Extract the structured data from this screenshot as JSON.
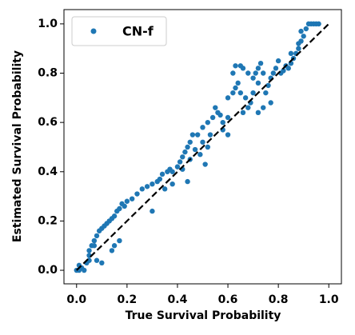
{
  "chart_data": {
    "type": "scatter",
    "xlabel": "True Survival Probability",
    "ylabel": "Estimated Survival Probability",
    "xlim": [
      -0.05,
      1.05
    ],
    "ylim": [
      -0.055,
      1.058
    ],
    "xticks": [
      {
        "value": 0,
        "label": "0.0"
      },
      0.2,
      0.4,
      0.6,
      0.8,
      {
        "value": 1,
        "label": "1.0"
      }
    ],
    "yticks": [
      {
        "value": 0,
        "label": "0.0"
      },
      0.2,
      0.4,
      0.6,
      0.8,
      {
        "value": 1,
        "label": "1.0"
      }
    ],
    "legend": "upper left",
    "reference_line": {
      "x": [
        0,
        1
      ],
      "y": [
        0,
        1
      ],
      "color": "#000000",
      "dashed": true
    },
    "series": [
      {
        "name": "CN-f",
        "color": "#1f77b4",
        "x": [
          0,
          0.01,
          0.02,
          0.03,
          0.01,
          0.04,
          0.05,
          0.06,
          0.05,
          0.07,
          0.08,
          0.09,
          0.1,
          0.11,
          0.12,
          0.08,
          0.1,
          0.07,
          0.13,
          0.15,
          0.14,
          0.16,
          0.17,
          0.18,
          0.19,
          0.2,
          0.15,
          0.14,
          0.17,
          0.22,
          0.24,
          0.26,
          0.28,
          0.3,
          0.32,
          0.33,
          0.34,
          0.36,
          0.37,
          0.38,
          0.35,
          0.38,
          0.4,
          0.41,
          0.42,
          0.43,
          0.44,
          0.45,
          0.46,
          0.48,
          0.5,
          0.47,
          0.49,
          0.52,
          0.5,
          0.52,
          0.54,
          0.55,
          0.56,
          0.53,
          0.51,
          0.44,
          0.45,
          0.57,
          0.58,
          0.6,
          0.6,
          0.62,
          0.63,
          0.64,
          0.62,
          0.65,
          0.63,
          0.66,
          0.68,
          0.7,
          0.71,
          0.72,
          0.73,
          0.74,
          0.72,
          0.7,
          0.69,
          0.68,
          0.66,
          0.67,
          0.65,
          0.75,
          0.76,
          0.77,
          0.78,
          0.79,
          0.8,
          0.77,
          0.72,
          0.74,
          0.81,
          0.82,
          0.83,
          0.84,
          0.85,
          0.86,
          0.87,
          0.88,
          0.89,
          0.9,
          0.91,
          0.92,
          0.93,
          0.94,
          0.95,
          0.96,
          0.89,
          0.88,
          0.85,
          0.6,
          0.58,
          0.42,
          0.3,
          0.05
        ],
        "values": [
          0,
          0,
          0.01,
          0,
          0.02,
          0.03,
          0.06,
          0.1,
          0.08,
          0.12,
          0.14,
          0.16,
          0.17,
          0.18,
          0.19,
          0.04,
          0.03,
          0.1,
          0.2,
          0.22,
          0.21,
          0.24,
          0.25,
          0.27,
          0.26,
          0.28,
          0.1,
          0.08,
          0.12,
          0.29,
          0.31,
          0.33,
          0.34,
          0.35,
          0.36,
          0.37,
          0.39,
          0.4,
          0.41,
          0.4,
          0.33,
          0.35,
          0.42,
          0.44,
          0.46,
          0.48,
          0.5,
          0.52,
          0.55,
          0.55,
          0.52,
          0.49,
          0.47,
          0.5,
          0.58,
          0.6,
          0.62,
          0.66,
          0.64,
          0.55,
          0.43,
          0.36,
          0.45,
          0.63,
          0.6,
          0.62,
          0.7,
          0.72,
          0.74,
          0.76,
          0.8,
          0.83,
          0.83,
          0.82,
          0.8,
          0.78,
          0.8,
          0.82,
          0.84,
          0.8,
          0.76,
          0.72,
          0.68,
          0.66,
          0.64,
          0.7,
          0.72,
          0.72,
          0.75,
          0.78,
          0.8,
          0.82,
          0.85,
          0.68,
          0.64,
          0.66,
          0.8,
          0.81,
          0.83,
          0.82,
          0.84,
          0.86,
          0.88,
          0.9,
          0.93,
          0.95,
          0.98,
          1,
          1,
          1,
          1,
          1,
          0.97,
          0.92,
          0.88,
          0.55,
          0.57,
          0.41,
          0.24,
          0.04
        ]
      }
    ]
  }
}
